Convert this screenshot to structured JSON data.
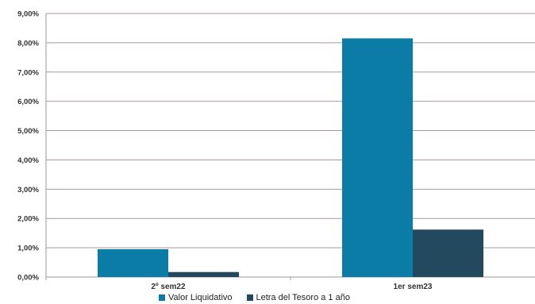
{
  "chart_data": {
    "type": "bar",
    "categories": [
      "2º sem22",
      "1er sem23"
    ],
    "series": [
      {
        "name": "Valor Liquidativo",
        "values": [
          0.95,
          8.15
        ],
        "color": "#0a7ca6"
      },
      {
        "name": "Letra del Tesoro a 1 año",
        "values": [
          0.17,
          1.62
        ],
        "color": "#23495f"
      }
    ],
    "yticks": [
      "0,00%",
      "1,00%",
      "2,00%",
      "3,00%",
      "4,00%",
      "5,00%",
      "6,00%",
      "7,00%",
      "8,00%",
      "9,00%"
    ],
    "ylim": [
      0,
      9
    ],
    "grid": true,
    "legend_position": "bottom"
  }
}
